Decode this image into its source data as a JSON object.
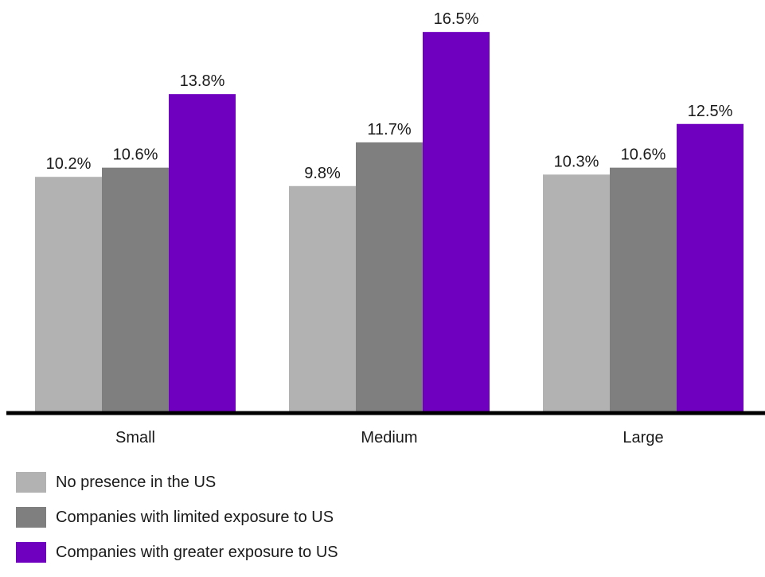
{
  "chart_data": {
    "type": "bar",
    "title": "",
    "xlabel": "",
    "ylabel": "",
    "categories": [
      "Small",
      "Medium",
      "Large"
    ],
    "series": [
      {
        "name": "No presence in the US",
        "color": "#b2b2b2",
        "values": [
          10.2,
          9.8,
          10.3
        ],
        "labels": [
          "10.2%",
          "9.8%",
          "10.3%"
        ]
      },
      {
        "name": "Companies with limited exposure to US",
        "color": "#7f7f7f",
        "values": [
          10.6,
          11.7,
          10.6
        ],
        "labels": [
          "10.6%",
          "11.7%",
          "10.6%"
        ]
      },
      {
        "name": "Companies with greater exposure to US",
        "color": "#7000c0",
        "values": [
          13.8,
          16.5,
          12.5
        ],
        "labels": [
          "13.8%",
          "16.5%",
          "12.5%"
        ]
      }
    ],
    "ylim": [
      0,
      17
    ],
    "value_unit": "%",
    "grid": false,
    "legend_position": "bottom-left"
  }
}
